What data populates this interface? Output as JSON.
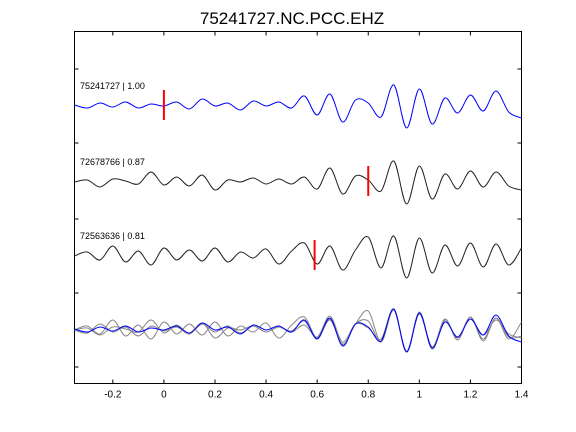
{
  "chart_data": {
    "type": "line",
    "title": "75241727.NC.PCC.EHZ",
    "xlabel": "",
    "ylabel": "",
    "xlim": [
      -0.35,
      1.4
    ],
    "xticks": [
      -0.2,
      0,
      0.2,
      0.4,
      0.6,
      0.8,
      1,
      1.2,
      1.4
    ],
    "xtick_labels": [
      "-0.2",
      "0",
      "0.2",
      "0.4",
      "0.6",
      "0.8",
      "1",
      "1.2",
      "1.4"
    ],
    "grid": false,
    "legend": "none",
    "colors": {
      "primary": "#0000ff",
      "similar": "#222222",
      "overlay_gray": "#808080",
      "pick": "#ff0000"
    },
    "series": [
      {
        "label": "75241727 | 1.00",
        "event_id": "75241727",
        "correlation": 1.0,
        "row": 1,
        "color": "#0000ff",
        "pick_time": 0.0,
        "x": [
          -0.35,
          -0.3,
          -0.25,
          -0.2,
          -0.15,
          -0.1,
          -0.05,
          0.0,
          0.05,
          0.1,
          0.15,
          0.2,
          0.25,
          0.3,
          0.35,
          0.4,
          0.45,
          0.5,
          0.55,
          0.6,
          0.65,
          0.7,
          0.75,
          0.8,
          0.85,
          0.9,
          0.95,
          1.0,
          1.05,
          1.1,
          1.15,
          1.2,
          1.25,
          1.3,
          1.35,
          1.4
        ],
        "y": [
          0.05,
          -0.1,
          0.15,
          -0.05,
          0.2,
          -0.1,
          0.1,
          0.0,
          0.2,
          -0.15,
          0.35,
          0.0,
          0.15,
          -0.2,
          0.25,
          0.0,
          0.2,
          -0.1,
          0.5,
          -0.45,
          0.6,
          -0.8,
          0.3,
          0.15,
          -0.55,
          1.05,
          -1.1,
          0.85,
          -0.9,
          0.4,
          -0.35,
          0.55,
          -0.25,
          0.75,
          -0.3,
          -0.6
        ]
      },
      {
        "label": "72678766 | 0.87",
        "event_id": "72678766",
        "correlation": 0.87,
        "row": 2,
        "color": "#222222",
        "pick_time": 0.8,
        "x": [
          -0.35,
          -0.3,
          -0.25,
          -0.2,
          -0.15,
          -0.1,
          -0.05,
          0.0,
          0.05,
          0.1,
          0.15,
          0.2,
          0.25,
          0.3,
          0.35,
          0.4,
          0.45,
          0.5,
          0.55,
          0.6,
          0.65,
          0.7,
          0.75,
          0.8,
          0.85,
          0.9,
          0.95,
          1.0,
          1.05,
          1.1,
          1.15,
          1.2,
          1.25,
          1.3,
          1.35,
          1.4
        ],
        "y": [
          0.0,
          0.1,
          -0.25,
          0.15,
          0.05,
          -0.1,
          0.5,
          -0.15,
          0.25,
          -0.2,
          0.35,
          -0.4,
          0.1,
          0.0,
          0.2,
          -0.1,
          0.15,
          -0.1,
          0.25,
          -0.35,
          0.7,
          -0.6,
          0.3,
          0.1,
          -0.45,
          1.05,
          -1.1,
          0.8,
          -0.85,
          0.4,
          -0.35,
          0.55,
          -0.25,
          0.5,
          -0.2,
          -0.4
        ]
      },
      {
        "label": "72563636 | 0.81",
        "event_id": "72563636",
        "correlation": 0.81,
        "row": 3,
        "color": "#222222",
        "pick_time": 0.59,
        "x": [
          -0.35,
          -0.3,
          -0.25,
          -0.2,
          -0.15,
          -0.1,
          -0.05,
          0.0,
          0.05,
          0.1,
          0.15,
          0.2,
          0.25,
          0.3,
          0.35,
          0.4,
          0.45,
          0.5,
          0.55,
          0.6,
          0.65,
          0.7,
          0.75,
          0.8,
          0.85,
          0.9,
          0.95,
          1.0,
          1.05,
          1.1,
          1.15,
          1.2,
          1.25,
          1.3,
          1.35,
          1.4
        ],
        "y": [
          0.0,
          0.2,
          -0.2,
          0.5,
          -0.3,
          0.25,
          -0.45,
          0.4,
          -0.2,
          0.3,
          -0.25,
          0.4,
          -0.3,
          0.2,
          -0.1,
          0.35,
          -0.4,
          0.25,
          0.65,
          -0.4,
          0.5,
          -0.7,
          0.3,
          0.95,
          -0.6,
          1.0,
          -1.1,
          0.9,
          -0.85,
          0.55,
          -0.5,
          0.65,
          -0.55,
          0.6,
          -0.45,
          0.4
        ]
      },
      {
        "label": "",
        "row": 4,
        "overlay": true,
        "color": "#808080",
        "x": [
          -0.35,
          -0.3,
          -0.25,
          -0.2,
          -0.15,
          -0.1,
          -0.05,
          0.0,
          0.05,
          0.1,
          0.15,
          0.2,
          0.25,
          0.3,
          0.35,
          0.4,
          0.45,
          0.5,
          0.55,
          0.6,
          0.65,
          0.7,
          0.75,
          0.8,
          0.85,
          0.9,
          0.95,
          1.0,
          1.05,
          1.1,
          1.15,
          1.2,
          1.25,
          1.3,
          1.35,
          1.4
        ],
        "y": [
          0.0,
          -0.15,
          0.3,
          -0.1,
          0.15,
          -0.3,
          0.2,
          -0.05,
          0.15,
          -0.2,
          0.3,
          -0.1,
          0.2,
          -0.15,
          0.2,
          -0.1,
          0.15,
          -0.05,
          0.45,
          -0.4,
          0.55,
          -0.75,
          0.3,
          0.45,
          -0.6,
          1.0,
          -1.05,
          0.85,
          -0.95,
          0.5,
          -0.4,
          0.65,
          -0.45,
          0.6,
          -0.35,
          -0.3
        ]
      }
    ]
  }
}
